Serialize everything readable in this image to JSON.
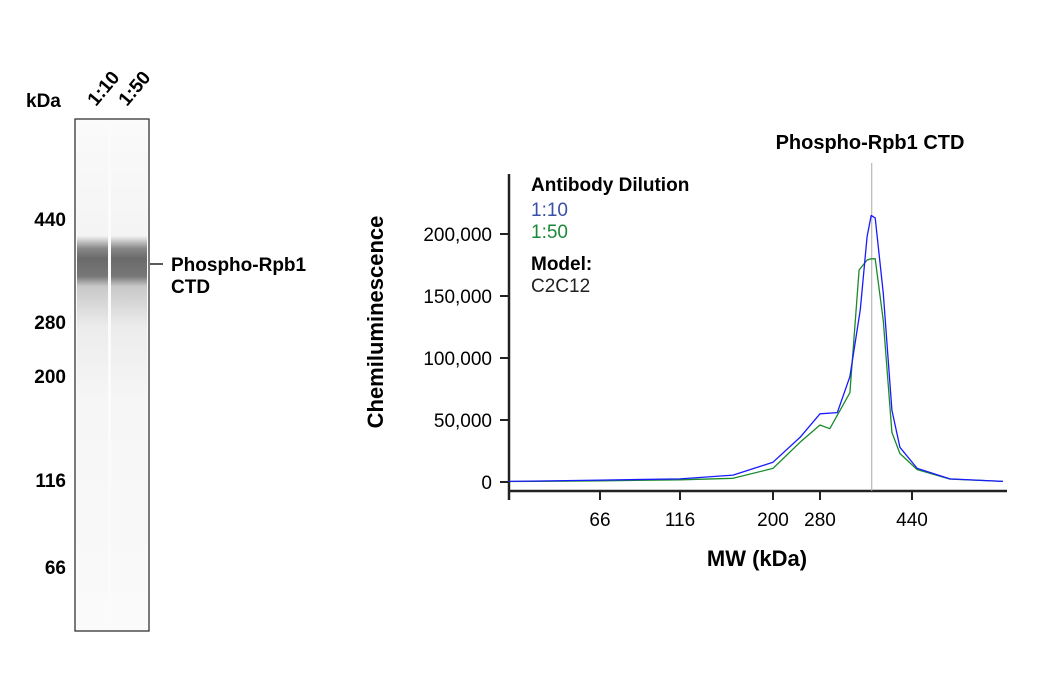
{
  "blot": {
    "unit_label": "kDa",
    "lanes": [
      "1:10",
      "1:50"
    ],
    "markers": [
      "440",
      "280",
      "200",
      "116",
      "66"
    ],
    "band_label_line1": "Phospho-Rpb1",
    "band_label_line2": "CTD"
  },
  "chart_data": {
    "type": "line",
    "title": "Phospho-Rpb1 CTD",
    "xlabel": "MW (kDa)",
    "ylabel": "Chemiluminescence",
    "xticks": [
      66,
      116,
      200,
      280,
      440
    ],
    "yticks": [
      "0",
      "50,000",
      "100,000",
      "150,000",
      "200,000"
    ],
    "ytick_values": [
      0,
      50000,
      100000,
      150000,
      200000
    ],
    "reference_line_mw": 370,
    "grid": false,
    "legend": {
      "title": "Antibody Dilution",
      "model_label": "Model:",
      "model_value": "C2C12",
      "placement": "top-left"
    },
    "series": [
      {
        "name": "1:10",
        "color": "#1a1aff",
        "label_color": "#3a4fa8",
        "x": [
          9,
          28,
          66,
          116,
          164,
          200,
          246,
          280,
          310,
          332,
          350,
          362,
          369,
          376,
          390,
          405,
          419,
          449,
          506,
          598
        ],
        "y": [
          500,
          800,
          1500,
          2500,
          5600,
          16000,
          36000,
          55000,
          56000,
          85000,
          139000,
          198000,
          215000,
          213000,
          152000,
          58000,
          28000,
          11000,
          2500,
          500
        ]
      },
      {
        "name": "1:50",
        "color": "#1a8a2a",
        "label_color": "#1a8a3a",
        "x": [
          9,
          28,
          66,
          116,
          164,
          200,
          246,
          280,
          297,
          332,
          348,
          362,
          369,
          376,
          390,
          405,
          419,
          449,
          506,
          598
        ],
        "y": [
          400,
          600,
          1000,
          1800,
          3000,
          11000,
          32000,
          46000,
          43000,
          72000,
          171000,
          179000,
          180000,
          180000,
          130000,
          40000,
          23000,
          10000,
          2300,
          500
        ]
      }
    ]
  }
}
